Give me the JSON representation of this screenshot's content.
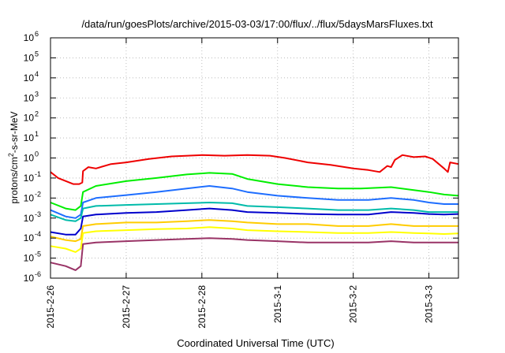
{
  "chart_data": {
    "type": "line",
    "title": "/data/run/goesPlots/archive/2015-03-03/17:00/flux/../flux/5daysMarsFluxes.txt",
    "xlabel": "Coordinated Universal Time (UTC)",
    "ylabel_parts": [
      "protons/cm",
      "2",
      "-s-sr-MeV"
    ],
    "x_range_days": [
      0,
      5.39
    ],
    "x_ticks": [
      {
        "day": 0,
        "label": "2015-2-26"
      },
      {
        "day": 1,
        "label": "2015-2-27"
      },
      {
        "day": 2,
        "label": "2015-2-28"
      },
      {
        "day": 3,
        "label": "2015-3-1"
      },
      {
        "day": 4,
        "label": "2015-3-2"
      },
      {
        "day": 5,
        "label": "2015-3-3"
      }
    ],
    "y_scale": "log",
    "y_range_exp": [
      -6,
      6
    ],
    "y_ticks": [
      {
        "exp": -6,
        "base": "10",
        "power": "-6"
      },
      {
        "exp": -5,
        "base": "10",
        "power": "-5"
      },
      {
        "exp": -4,
        "base": "10",
        "power": "-4"
      },
      {
        "exp": -3,
        "base": "10",
        "power": "-3"
      },
      {
        "exp": -2,
        "base": "10",
        "power": "-2"
      },
      {
        "exp": -1,
        "base": "10",
        "power": "-1"
      },
      {
        "exp": 0,
        "base": "10",
        "power": "0"
      },
      {
        "exp": 1,
        "base": "10",
        "power": "1"
      },
      {
        "exp": 2,
        "base": "10",
        "power": "2"
      },
      {
        "exp": 3,
        "base": "10",
        "power": "3"
      },
      {
        "exp": 4,
        "base": "10",
        "power": "4"
      },
      {
        "exp": 5,
        "base": "10",
        "power": "5"
      },
      {
        "exp": 6,
        "base": "10",
        "power": "6"
      }
    ],
    "grid": true,
    "legend": "none",
    "series": [
      {
        "color": "#ee0000",
        "values": [
          [
            0,
            0.2
          ],
          [
            0.1,
            0.1
          ],
          [
            0.3,
            0.05
          ],
          [
            0.38,
            0.05
          ],
          [
            0.42,
            0.06
          ],
          [
            0.43,
            0.22
          ],
          [
            0.5,
            0.35
          ],
          [
            0.6,
            0.3
          ],
          [
            0.8,
            0.5
          ],
          [
            1.0,
            0.6
          ],
          [
            1.3,
            0.9
          ],
          [
            1.6,
            1.2
          ],
          [
            2.0,
            1.4
          ],
          [
            2.3,
            1.3
          ],
          [
            2.6,
            1.4
          ],
          [
            2.9,
            1.3
          ],
          [
            3.1,
            1.0
          ],
          [
            3.4,
            0.6
          ],
          [
            3.7,
            0.45
          ],
          [
            4.0,
            0.3
          ],
          [
            4.2,
            0.25
          ],
          [
            4.35,
            0.2
          ],
          [
            4.45,
            0.4
          ],
          [
            4.5,
            0.35
          ],
          [
            4.55,
            0.8
          ],
          [
            4.65,
            1.4
          ],
          [
            4.8,
            1.1
          ],
          [
            4.95,
            1.2
          ],
          [
            5.05,
            0.9
          ],
          [
            5.2,
            0.3
          ],
          [
            5.25,
            0.2
          ],
          [
            5.28,
            0.6
          ],
          [
            5.39,
            0.5
          ]
        ]
      },
      {
        "color": "#00ee00",
        "values": [
          [
            0,
            0.006
          ],
          [
            0.2,
            0.003
          ],
          [
            0.33,
            0.0025
          ],
          [
            0.4,
            0.004
          ],
          [
            0.43,
            0.02
          ],
          [
            0.6,
            0.04
          ],
          [
            1.0,
            0.07
          ],
          [
            1.4,
            0.1
          ],
          [
            1.8,
            0.15
          ],
          [
            2.1,
            0.18
          ],
          [
            2.4,
            0.16
          ],
          [
            2.6,
            0.09
          ],
          [
            3.0,
            0.05
          ],
          [
            3.4,
            0.035
          ],
          [
            3.8,
            0.03
          ],
          [
            4.1,
            0.03
          ],
          [
            4.5,
            0.035
          ],
          [
            4.8,
            0.025
          ],
          [
            5.0,
            0.02
          ],
          [
            5.2,
            0.015
          ],
          [
            5.39,
            0.013
          ]
        ]
      },
      {
        "color": "#1e6eff",
        "values": [
          [
            0,
            0.0025
          ],
          [
            0.2,
            0.0012
          ],
          [
            0.33,
            0.001
          ],
          [
            0.4,
            0.0015
          ],
          [
            0.43,
            0.006
          ],
          [
            0.6,
            0.01
          ],
          [
            1.0,
            0.014
          ],
          [
            1.4,
            0.02
          ],
          [
            1.8,
            0.03
          ],
          [
            2.1,
            0.04
          ],
          [
            2.4,
            0.03
          ],
          [
            2.6,
            0.02
          ],
          [
            3.0,
            0.013
          ],
          [
            3.4,
            0.01
          ],
          [
            3.8,
            0.008
          ],
          [
            4.2,
            0.008
          ],
          [
            4.5,
            0.01
          ],
          [
            4.8,
            0.008
          ],
          [
            5.0,
            0.006
          ],
          [
            5.2,
            0.005
          ],
          [
            5.39,
            0.005
          ]
        ]
      },
      {
        "color": "#0000cc",
        "values": [
          [
            0,
            0.0002
          ],
          [
            0.2,
            0.00015
          ],
          [
            0.33,
            0.00015
          ],
          [
            0.4,
            0.0003
          ],
          [
            0.43,
            0.0012
          ],
          [
            0.6,
            0.0015
          ],
          [
            1.0,
            0.0018
          ],
          [
            1.4,
            0.002
          ],
          [
            1.8,
            0.0025
          ],
          [
            2.1,
            0.003
          ],
          [
            2.4,
            0.0025
          ],
          [
            2.6,
            0.002
          ],
          [
            3.0,
            0.0018
          ],
          [
            3.4,
            0.0016
          ],
          [
            3.8,
            0.0015
          ],
          [
            4.2,
            0.0015
          ],
          [
            4.5,
            0.002
          ],
          [
            4.8,
            0.0018
          ],
          [
            5.0,
            0.0016
          ],
          [
            5.2,
            0.0015
          ],
          [
            5.39,
            0.0016
          ]
        ]
      },
      {
        "color": "#00bbaa",
        "values": [
          [
            0,
            0.0015
          ],
          [
            0.2,
            0.0008
          ],
          [
            0.33,
            0.0007
          ],
          [
            0.4,
            0.001
          ],
          [
            0.43,
            0.003
          ],
          [
            0.6,
            0.004
          ],
          [
            1.0,
            0.0045
          ],
          [
            1.4,
            0.005
          ],
          [
            1.8,
            0.0055
          ],
          [
            2.1,
            0.006
          ],
          [
            2.4,
            0.0055
          ],
          [
            2.6,
            0.004
          ],
          [
            3.0,
            0.0035
          ],
          [
            3.4,
            0.003
          ],
          [
            3.8,
            0.0025
          ],
          [
            4.2,
            0.0025
          ],
          [
            4.5,
            0.003
          ],
          [
            4.8,
            0.0025
          ],
          [
            5.0,
            0.002
          ],
          [
            5.2,
            0.002
          ],
          [
            5.39,
            0.002
          ]
        ]
      },
      {
        "color": "#ffcc00",
        "values": [
          [
            0,
            0.00012
          ],
          [
            0.2,
            8e-05
          ],
          [
            0.33,
            7e-05
          ],
          [
            0.4,
            9e-05
          ],
          [
            0.43,
            0.0004
          ],
          [
            0.6,
            0.0005
          ],
          [
            1.0,
            0.0006
          ],
          [
            1.4,
            0.0006
          ],
          [
            1.8,
            0.0007
          ],
          [
            2.1,
            0.0008
          ],
          [
            2.4,
            0.0007
          ],
          [
            2.6,
            0.0006
          ],
          [
            3.0,
            0.0005
          ],
          [
            3.4,
            0.0005
          ],
          [
            3.8,
            0.0004
          ],
          [
            4.2,
            0.0004
          ],
          [
            4.5,
            0.0005
          ],
          [
            4.8,
            0.0004
          ],
          [
            5.0,
            0.0004
          ],
          [
            5.2,
            0.0004
          ],
          [
            5.39,
            0.0004
          ]
        ]
      },
      {
        "color": "#ffff00",
        "values": [
          [
            0,
            4e-05
          ],
          [
            0.2,
            3e-05
          ],
          [
            0.33,
            2e-05
          ],
          [
            0.4,
            3e-05
          ],
          [
            0.43,
            0.00018
          ],
          [
            0.6,
            0.00022
          ],
          [
            1.0,
            0.00025
          ],
          [
            1.4,
            0.00028
          ],
          [
            1.8,
            0.0003
          ],
          [
            2.1,
            0.00035
          ],
          [
            2.4,
            0.0003
          ],
          [
            2.6,
            0.00025
          ],
          [
            3.0,
            0.00022
          ],
          [
            3.4,
            0.0002
          ],
          [
            3.8,
            0.00018
          ],
          [
            4.2,
            0.00018
          ],
          [
            4.5,
            0.0002
          ],
          [
            4.8,
            0.00018
          ],
          [
            5.0,
            0.00017
          ],
          [
            5.2,
            0.00016
          ],
          [
            5.39,
            0.00017
          ]
        ]
      },
      {
        "color": "#993366",
        "values": [
          [
            0,
            6e-06
          ],
          [
            0.2,
            4e-06
          ],
          [
            0.33,
            2.5e-06
          ],
          [
            0.4,
            4e-06
          ],
          [
            0.43,
            5e-05
          ],
          [
            0.6,
            6e-05
          ],
          [
            1.0,
            7e-05
          ],
          [
            1.4,
            8e-05
          ],
          [
            1.8,
            9e-05
          ],
          [
            2.1,
            0.0001
          ],
          [
            2.4,
            9e-05
          ],
          [
            2.6,
            8e-05
          ],
          [
            3.0,
            7e-05
          ],
          [
            3.4,
            6e-05
          ],
          [
            3.8,
            6e-05
          ],
          [
            4.2,
            6e-05
          ],
          [
            4.5,
            7e-05
          ],
          [
            4.8,
            6e-05
          ],
          [
            5.0,
            6e-05
          ],
          [
            5.2,
            6e-05
          ],
          [
            5.39,
            6e-05
          ]
        ]
      }
    ]
  }
}
